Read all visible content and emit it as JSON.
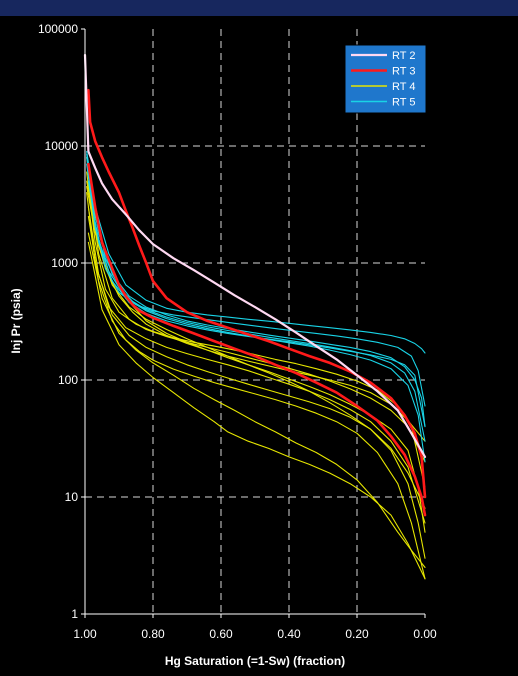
{
  "chart_data": {
    "type": "line",
    "title": "",
    "xlabel": "Hg Saturation (=1-Sw) (fraction)",
    "ylabel": "Inj Pr (psia)",
    "xlim": [
      1.0,
      0.0
    ],
    "ylim": [
      1,
      100000
    ],
    "y_scale": "log",
    "x_reversed": true,
    "grid": true,
    "x_ticks": [
      "1.00",
      "0.80",
      "0.60",
      "0.40",
      "0.20",
      "0.00"
    ],
    "y_ticks": [
      "1",
      "10",
      "100",
      "1000",
      "10000",
      "100000"
    ],
    "legend_position": "top-right",
    "colors": {
      "background": "#000000",
      "header": "#17275e",
      "grid": "#d9d9d9",
      "axis": "#ffffff",
      "legend_bg": "#1f77cc"
    },
    "series": [
      {
        "name": "RT 2",
        "color": "#ffd9f2",
        "width": 2.2,
        "curves": [
          {
            "x": [
              1.0,
              0.99,
              0.97,
              0.95,
              0.92,
              0.88,
              0.84,
              0.8,
              0.74,
              0.68,
              0.62,
              0.56,
              0.5,
              0.44,
              0.38,
              0.32,
              0.26,
              0.2,
              0.14,
              0.08,
              0.04,
              0.0
            ],
            "y": [
              60000,
              9000,
              6500,
              4800,
              3500,
              2600,
              1900,
              1450,
              1100,
              870,
              680,
              530,
              420,
              330,
              255,
              195,
              150,
              110,
              80,
              55,
              35,
              22
            ]
          }
        ]
      },
      {
        "name": "RT 3",
        "color": "#ff1a1a",
        "width": 2.6,
        "curves": [
          {
            "x": [
              0.99,
              0.985,
              0.97,
              0.95,
              0.93,
              0.9,
              0.88,
              0.86,
              0.84,
              0.82,
              0.8,
              0.76,
              0.7,
              0.64,
              0.58,
              0.52,
              0.46,
              0.4,
              0.34,
              0.28,
              0.22,
              0.16,
              0.1,
              0.06,
              0.03,
              0.01,
              0.0
            ],
            "y": [
              30000,
              16000,
              11000,
              8000,
              6000,
              4000,
              2800,
              2000,
              1400,
              1000,
              700,
              500,
              380,
              320,
              280,
              245,
              215,
              185,
              160,
              140,
              118,
              95,
              70,
              50,
              35,
              22,
              10
            ]
          },
          {
            "x": [
              0.99,
              0.97,
              0.95,
              0.92,
              0.9,
              0.88,
              0.86,
              0.84,
              0.8,
              0.74,
              0.68,
              0.62,
              0.56,
              0.5,
              0.44,
              0.38,
              0.32,
              0.26,
              0.2,
              0.14,
              0.1,
              0.06,
              0.03,
              0.01,
              0.0
            ],
            "y": [
              7000,
              3000,
              1500,
              900,
              650,
              520,
              440,
              390,
              340,
              290,
              250,
              215,
              185,
              160,
              135,
              115,
              95,
              78,
              60,
              45,
              33,
              23,
              15,
              10,
              7
            ]
          }
        ]
      },
      {
        "name": "RT 4",
        "color": "#e6e600",
        "width": 1.1,
        "curves": [
          {
            "x": [
              0.995,
              0.97,
              0.93,
              0.88,
              0.82,
              0.76,
              0.7,
              0.64,
              0.58,
              0.52,
              0.46,
              0.4,
              0.34,
              0.28,
              0.22,
              0.16,
              0.1,
              0.05,
              0.02,
              0.0
            ],
            "y": [
              8000,
              2500,
              1000,
              500,
              320,
              250,
              210,
              180,
              155,
              135,
              118,
              102,
              88,
              75,
              62,
              50,
              38,
              25,
              12,
              5
            ]
          },
          {
            "x": [
              0.995,
              0.97,
              0.94,
              0.9,
              0.85,
              0.8,
              0.74,
              0.68,
              0.62,
              0.56,
              0.5,
              0.44,
              0.38,
              0.32,
              0.26,
              0.2,
              0.14,
              0.08,
              0.04,
              0.0
            ],
            "y": [
              6000,
              1500,
              600,
              380,
              300,
              260,
              230,
              210,
              195,
              180,
              165,
              150,
              138,
              125,
              112,
              98,
              82,
              60,
              40,
              12
            ]
          },
          {
            "x": [
              0.99,
              0.96,
              0.92,
              0.87,
              0.82,
              0.76,
              0.7,
              0.64,
              0.58,
              0.52,
              0.46,
              0.4,
              0.34,
              0.28,
              0.22,
              0.16,
              0.1,
              0.05,
              0.0
            ],
            "y": [
              5000,
              1200,
              500,
              330,
              270,
              235,
              210,
              190,
              172,
              155,
              140,
              126,
              112,
              98,
              84,
              70,
              55,
              40,
              20
            ]
          },
          {
            "x": [
              0.995,
              0.97,
              0.93,
              0.88,
              0.82,
              0.76,
              0.7,
              0.64,
              0.58,
              0.52,
              0.46,
              0.4,
              0.34,
              0.28,
              0.22,
              0.16,
              0.1,
              0.05,
              0.0
            ],
            "y": [
              4000,
              1000,
              420,
              280,
              225,
              190,
              168,
              150,
              135,
              120,
              105,
              92,
              80,
              68,
              56,
              44,
              30,
              18,
              6
            ]
          },
          {
            "x": [
              0.99,
              0.96,
              0.92,
              0.87,
              0.82,
              0.76,
              0.7,
              0.64,
              0.58,
              0.52,
              0.46,
              0.4,
              0.34,
              0.28,
              0.22,
              0.16,
              0.1,
              0.05,
              0.02,
              0.0
            ],
            "y": [
              3000,
              800,
              360,
              240,
              190,
              158,
              135,
              118,
              104,
              92,
              82,
              73,
              65,
              57,
              48,
              38,
              25,
              13,
              6,
              3
            ]
          },
          {
            "x": [
              0.99,
              0.96,
              0.92,
              0.88,
              0.84,
              0.8,
              0.74,
              0.68,
              0.62,
              0.56,
              0.5,
              0.44,
              0.38,
              0.32,
              0.26,
              0.2,
              0.14,
              0.08,
              0.04,
              0.0
            ],
            "y": [
              2500,
              700,
              320,
              220,
              175,
              148,
              124,
              108,
              95,
              85,
              76,
              68,
              60,
              52,
              44,
              35,
              24,
              13,
              6,
              2
            ]
          },
          {
            "x": [
              0.995,
              0.96,
              0.92,
              0.87,
              0.82,
              0.76,
              0.7,
              0.64,
              0.58,
              0.52,
              0.46,
              0.4,
              0.34,
              0.28,
              0.22,
              0.16,
              0.1,
              0.05,
              0.0
            ],
            "y": [
              5000,
              1400,
              650,
              420,
              330,
              270,
              225,
              190,
              160,
              135,
              115,
              97,
              80,
              64,
              50,
              38,
              26,
              16,
              8
            ]
          },
          {
            "x": [
              0.995,
              0.97,
              0.94,
              0.9,
              0.86,
              0.82,
              0.76,
              0.7,
              0.64,
              0.58,
              0.52,
              0.46,
              0.4,
              0.34,
              0.28,
              0.22,
              0.16,
              0.1,
              0.05,
              0.0
            ],
            "y": [
              4500,
              1800,
              900,
              520,
              380,
              300,
              240,
              205,
              180,
              160,
              145,
              132,
              120,
              110,
              100,
              90,
              78,
              62,
              45,
              30
            ]
          },
          {
            "x": [
              0.99,
              0.95,
              0.9,
              0.85,
              0.8,
              0.74,
              0.68,
              0.62,
              0.56,
              0.5,
              0.44,
              0.38,
              0.32,
              0.26,
              0.2,
              0.14,
              0.08,
              0.04,
              0.0
            ],
            "y": [
              1800,
              500,
              250,
              180,
              140,
              110,
              85,
              68,
              55,
              44,
              36,
              29,
              24,
              19,
              14,
              9,
              5,
              3.5,
              2.5
            ]
          },
          {
            "x": [
              0.99,
              0.95,
              0.9,
              0.85,
              0.8,
              0.74,
              0.68,
              0.62,
              0.58,
              0.52,
              0.46,
              0.4,
              0.34,
              0.28,
              0.22,
              0.16,
              0.1,
              0.05,
              0.0
            ],
            "y": [
              1500,
              400,
              200,
              140,
              105,
              78,
              58,
              44,
              36,
              30,
              26,
              22,
              19,
              16,
              13,
              10,
              7,
              4,
              2
            ]
          }
        ]
      },
      {
        "name": "RT 5",
        "color": "#19d3e6",
        "width": 1.1,
        "curves": [
          {
            "x": [
              0.995,
              0.97,
              0.93,
              0.88,
              0.82,
              0.76,
              0.7,
              0.64,
              0.58,
              0.52,
              0.46,
              0.4,
              0.34,
              0.28,
              0.22,
              0.16,
              0.1,
              0.06,
              0.03,
              0.01,
              0.0
            ],
            "y": [
              9000,
              3000,
              1200,
              650,
              480,
              410,
              380,
              360,
              345,
              330,
              318,
              305,
              292,
              280,
              268,
              255,
              240,
              225,
              205,
              185,
              170
            ]
          },
          {
            "x": [
              0.995,
              0.97,
              0.94,
              0.9,
              0.85,
              0.8,
              0.74,
              0.68,
              0.62,
              0.56,
              0.5,
              0.44,
              0.38,
              0.32,
              0.26,
              0.2,
              0.14,
              0.08,
              0.04,
              0.02,
              0.0
            ],
            "y": [
              8000,
              2200,
              900,
              560,
              440,
              390,
              360,
              340,
              322,
              305,
              290,
              275,
              262,
              250,
              238,
              225,
              210,
              190,
              160,
              120,
              60
            ]
          },
          {
            "x": [
              0.99,
              0.96,
              0.92,
              0.87,
              0.82,
              0.76,
              0.7,
              0.64,
              0.58,
              0.52,
              0.46,
              0.4,
              0.34,
              0.28,
              0.22,
              0.16,
              0.1,
              0.06,
              0.03,
              0.01,
              0.0
            ],
            "y": [
              6000,
              1800,
              800,
              520,
              420,
              360,
              320,
              295,
              275,
              258,
              242,
              228,
              215,
              202,
              190,
              175,
              155,
              130,
              100,
              70,
              40
            ]
          },
          {
            "x": [
              0.995,
              0.97,
              0.93,
              0.88,
              0.82,
              0.76,
              0.7,
              0.64,
              0.58,
              0.52,
              0.46,
              0.4,
              0.34,
              0.28,
              0.22,
              0.16,
              0.1,
              0.05,
              0.02,
              0.0
            ],
            "y": [
              7000,
              2000,
              850,
              500,
              390,
              335,
              300,
              275,
              255,
              238,
              222,
              208,
              195,
              180,
              165,
              148,
              125,
              90,
              50,
              20
            ]
          },
          {
            "x": [
              0.99,
              0.96,
              0.92,
              0.87,
              0.82,
              0.76,
              0.7,
              0.64,
              0.58,
              0.52,
              0.46,
              0.4,
              0.34,
              0.28,
              0.22,
              0.16,
              0.1,
              0.06,
              0.03,
              0.0
            ],
            "y": [
              5000,
              1500,
              700,
              460,
              370,
              320,
              290,
              268,
              250,
              236,
              224,
              212,
              200,
              188,
              176,
              164,
              150,
              135,
              110,
              40
            ]
          },
          {
            "x": [
              0.995,
              0.97,
              0.94,
              0.9,
              0.86,
              0.82,
              0.76,
              0.7,
              0.64,
              0.58,
              0.52,
              0.46,
              0.4,
              0.34,
              0.28,
              0.22,
              0.16,
              0.1,
              0.06,
              0.03,
              0.0
            ],
            "y": [
              8500,
              2800,
              1100,
              620,
              470,
              400,
              345,
              310,
              285,
              265,
              248,
              232,
              218,
              205,
              192,
              178,
              162,
              140,
              115,
              80,
              30
            ]
          }
        ]
      }
    ]
  }
}
